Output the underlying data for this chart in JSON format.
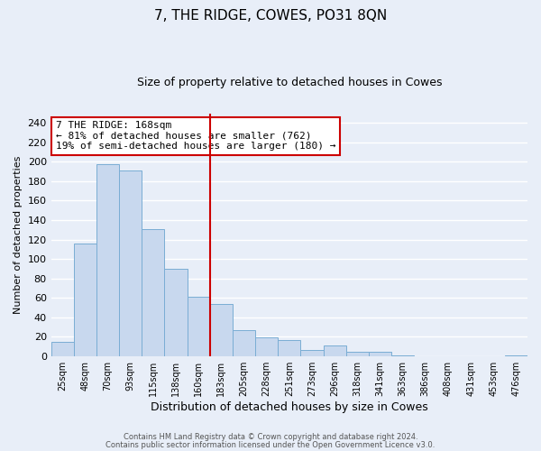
{
  "title": "7, THE RIDGE, COWES, PO31 8QN",
  "subtitle": "Size of property relative to detached houses in Cowes",
  "xlabel": "Distribution of detached houses by size in Cowes",
  "ylabel": "Number of detached properties",
  "categories": [
    "25sqm",
    "48sqm",
    "70sqm",
    "93sqm",
    "115sqm",
    "138sqm",
    "160sqm",
    "183sqm",
    "205sqm",
    "228sqm",
    "251sqm",
    "273sqm",
    "296sqm",
    "318sqm",
    "341sqm",
    "363sqm",
    "386sqm",
    "408sqm",
    "431sqm",
    "453sqm",
    "476sqm"
  ],
  "values": [
    15,
    116,
    198,
    191,
    131,
    90,
    61,
    54,
    27,
    19,
    16,
    6,
    11,
    4,
    4,
    1,
    0,
    0,
    0,
    0,
    1
  ],
  "bar_color": "#c8d8ee",
  "bar_edge_color": "#7aadd4",
  "vline_x_index": 6,
  "vline_color": "#cc0000",
  "annotation_box_text": "7 THE RIDGE: 168sqm\n← 81% of detached houses are smaller (762)\n19% of semi-detached houses are larger (180) →",
  "annotation_box_edgecolor": "#cc0000",
  "annotation_box_facecolor": "#ffffff",
  "ylim": [
    0,
    250
  ],
  "yticks": [
    0,
    20,
    40,
    60,
    80,
    100,
    120,
    140,
    160,
    180,
    200,
    220,
    240
  ],
  "footer_line1": "Contains HM Land Registry data © Crown copyright and database right 2024.",
  "footer_line2": "Contains public sector information licensed under the Open Government Licence v3.0.",
  "bg_color": "#e8eef8",
  "plot_bg_color": "#e8eef8",
  "grid_color": "#ffffff",
  "title_fontsize": 11,
  "subtitle_fontsize": 9,
  "xlabel_fontsize": 9,
  "ylabel_fontsize": 8
}
